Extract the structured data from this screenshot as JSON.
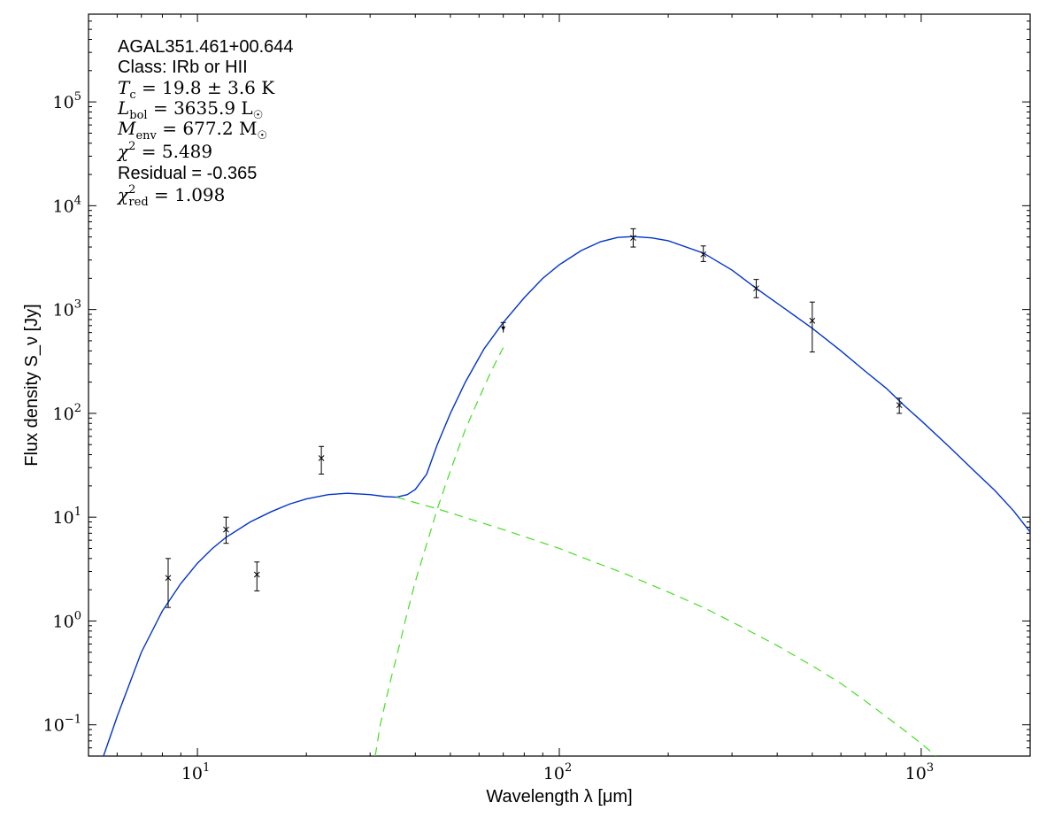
{
  "chart_data": {
    "type": "line",
    "x_scale": "log",
    "y_scale": "log",
    "xlim": [
      5,
      2000
    ],
    "ylim": [
      0.05,
      700000
    ],
    "grid": false,
    "xlabel": "Wavelength λ [μm]",
    "ylabel": "Flux density S_ν [Jy]",
    "x_ticks": [
      {
        "value": 10,
        "base": "10",
        "exp": "1"
      },
      {
        "value": 100,
        "base": "10",
        "exp": "2"
      },
      {
        "value": 1000,
        "base": "10",
        "exp": "3"
      }
    ],
    "y_ticks": [
      {
        "value": 0.1,
        "base": "10",
        "exp": "−1"
      },
      {
        "value": 1,
        "base": "10",
        "exp": "0"
      },
      {
        "value": 10,
        "base": "10",
        "exp": "1"
      },
      {
        "value": 100,
        "base": "10",
        "exp": "2"
      },
      {
        "value": 1000,
        "base": "10",
        "exp": "3"
      },
      {
        "value": 10000,
        "base": "10",
        "exp": "4"
      },
      {
        "value": 100000,
        "base": "10",
        "exp": "5"
      }
    ],
    "annotations": {
      "source": "AGAL351.461+00.644",
      "class": "Class: IRb or HII",
      "tc": {
        "symbol": "T",
        "sub": "c",
        "value": " = 19.8 ± 3.6 K"
      },
      "lbol": {
        "symbol": "L",
        "sub": "bol",
        "value": " = 3635.9 L",
        "unit_sub": "☉"
      },
      "menv": {
        "symbol": "M",
        "sub": "env",
        "value": " = 677.2 M",
        "unit_sub": "☉"
      },
      "chi2": {
        "symbol": "χ",
        "sup": "2",
        "value": " = 5.489"
      },
      "residual": "Residual = -0.365",
      "chi2red": {
        "symbol": "χ",
        "sup": "2",
        "sub": "red",
        "value": " = 1.098"
      }
    },
    "series": [
      {
        "kind": "measurements",
        "color": "#000000",
        "points": [
          {
            "x": 8.3,
            "y": 2.6,
            "ylo": 1.35,
            "yhi": 4.0
          },
          {
            "x": 12.0,
            "y": 7.6,
            "ylo": 5.6,
            "yhi": 10.0
          },
          {
            "x": 14.6,
            "y": 2.8,
            "ylo": 1.95,
            "yhi": 3.7
          },
          {
            "x": 22.0,
            "y": 37.0,
            "ylo": 26.0,
            "yhi": 48.0
          },
          {
            "x": 70.0,
            "y": 660.0,
            "ylo": 600.0,
            "yhi": 750.0,
            "upper_limit": true
          },
          {
            "x": 160.0,
            "y": 4900.0,
            "ylo": 4000.0,
            "yhi": 6000.0
          },
          {
            "x": 250.0,
            "y": 3400.0,
            "ylo": 2900.0,
            "yhi": 4100.0
          },
          {
            "x": 350.0,
            "y": 1600.0,
            "ylo": 1300.0,
            "yhi": 1950.0
          },
          {
            "x": 500.0,
            "y": 780.0,
            "ylo": 390.0,
            "yhi": 1180.0
          },
          {
            "x": 870.0,
            "y": 120.0,
            "ylo": 100.0,
            "yhi": 140.0
          }
        ]
      },
      {
        "kind": "total-fit",
        "color": "#0033cc",
        "dash": false,
        "points": [
          [
            5.5,
            0.05
          ],
          [
            6,
            0.12
          ],
          [
            7,
            0.5
          ],
          [
            8,
            1.25
          ],
          [
            9,
            2.3
          ],
          [
            10,
            3.6
          ],
          [
            11,
            5.0
          ],
          [
            12,
            6.4
          ],
          [
            14,
            9.0
          ],
          [
            16,
            11.3
          ],
          [
            18,
            13.4
          ],
          [
            20,
            15.0
          ],
          [
            23,
            16.5
          ],
          [
            26,
            17.0
          ],
          [
            30,
            16.5
          ],
          [
            33,
            15.8
          ],
          [
            35.5,
            15.6
          ],
          [
            38,
            16.5
          ],
          [
            40,
            18.5
          ],
          [
            43,
            26
          ],
          [
            46,
            50
          ],
          [
            50,
            100
          ],
          [
            55,
            200
          ],
          [
            62,
            420
          ],
          [
            70,
            750
          ],
          [
            80,
            1300
          ],
          [
            90,
            2000
          ],
          [
            100,
            2700
          ],
          [
            115,
            3700
          ],
          [
            130,
            4500
          ],
          [
            145,
            4950
          ],
          [
            160,
            5050
          ],
          [
            180,
            4900
          ],
          [
            200,
            4600
          ],
          [
            250,
            3500
          ],
          [
            300,
            2400
          ],
          [
            350,
            1600
          ],
          [
            400,
            1150
          ],
          [
            500,
            660
          ],
          [
            600,
            400
          ],
          [
            700,
            255
          ],
          [
            800,
            175
          ],
          [
            900,
            118
          ],
          [
            1000,
            85
          ],
          [
            1200,
            47
          ],
          [
            1400,
            28
          ],
          [
            1600,
            18
          ],
          [
            1800,
            11.5
          ],
          [
            2000,
            7.2
          ]
        ]
      },
      {
        "kind": "warm-component",
        "color": "#44dd22",
        "dash": true,
        "points": [
          [
            35.5,
            15.6
          ],
          [
            40,
            13.8
          ],
          [
            45,
            12.3
          ],
          [
            50,
            11.0
          ],
          [
            60,
            9.0
          ],
          [
            70,
            7.6
          ],
          [
            80,
            6.5
          ],
          [
            100,
            5.0
          ],
          [
            120,
            3.9
          ],
          [
            150,
            2.9
          ],
          [
            200,
            1.9
          ],
          [
            250,
            1.35
          ],
          [
            300,
            0.98
          ],
          [
            400,
            0.58
          ],
          [
            500,
            0.37
          ],
          [
            600,
            0.25
          ],
          [
            700,
            0.17
          ],
          [
            800,
            0.12
          ],
          [
            900,
            0.088
          ],
          [
            1000,
            0.066
          ],
          [
            1100,
            0.05
          ]
        ]
      },
      {
        "kind": "cold-component",
        "color": "#44dd22",
        "dash": true,
        "points": [
          [
            31,
            0.05
          ],
          [
            32,
            0.1
          ],
          [
            34,
            0.25
          ],
          [
            36,
            0.55
          ],
          [
            38,
            1.2
          ],
          [
            40,
            2.4
          ],
          [
            43,
            5.5
          ],
          [
            46,
            12
          ],
          [
            50,
            28
          ],
          [
            55,
            70
          ],
          [
            60,
            140
          ],
          [
            65,
            260
          ],
          [
            70,
            430
          ]
        ]
      }
    ]
  }
}
